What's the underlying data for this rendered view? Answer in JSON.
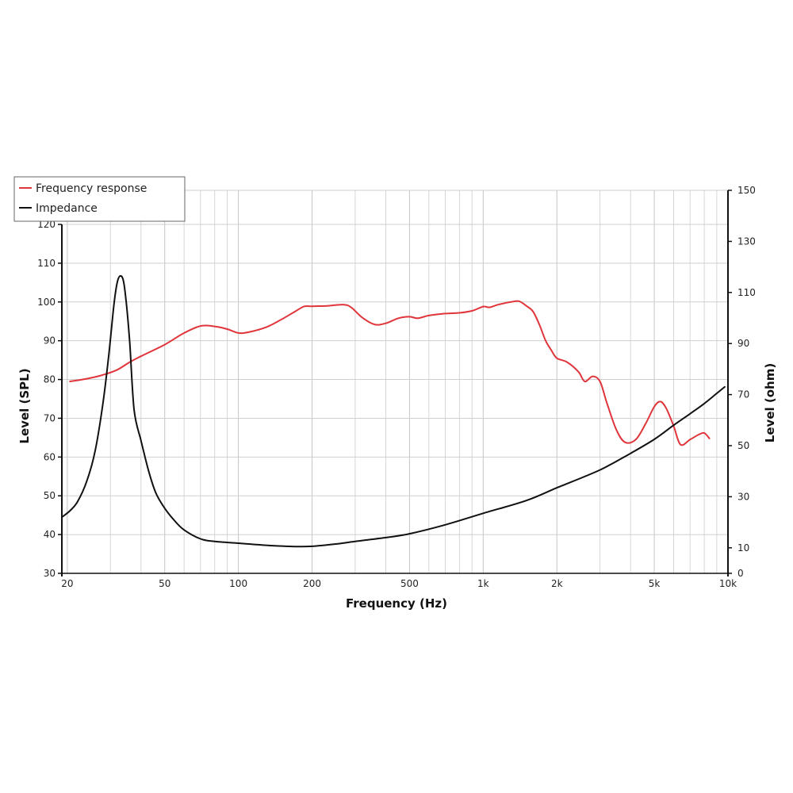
{
  "chart_data": {
    "type": "line",
    "xlabel": "Frequency (Hz)",
    "ylabel": "Level (SPL)",
    "ylabel_right": "Level (ohm)",
    "x_scale": "log",
    "xlim": [
      19,
      10000
    ],
    "ylim": [
      30,
      120
    ],
    "ylim_right": [
      0,
      150
    ],
    "grid": true,
    "legend_position": "top-left",
    "x_ticks": [
      {
        "value": 20,
        "label": "20"
      },
      {
        "value": 50,
        "label": "50"
      },
      {
        "value": 100,
        "label": "100"
      },
      {
        "value": 200,
        "label": "200"
      },
      {
        "value": 500,
        "label": "500"
      },
      {
        "value": 1000,
        "label": "1k"
      },
      {
        "value": 2000,
        "label": "2k"
      },
      {
        "value": 5000,
        "label": "5k"
      },
      {
        "value": 10000,
        "label": "10k"
      }
    ],
    "y_ticks_left": [
      30,
      40,
      50,
      60,
      70,
      80,
      90,
      100,
      110,
      120
    ],
    "y_ticks_right": [
      0,
      10,
      30,
      50,
      70,
      90,
      110,
      130,
      150
    ],
    "series": [
      {
        "name": "Frequency response",
        "axis": "left",
        "color": "#e0353b",
        "points": [
          [
            20.5,
            79.5
          ],
          [
            24,
            80.2
          ],
          [
            28,
            81.2
          ],
          [
            32,
            82.5
          ],
          [
            36,
            84.5
          ],
          [
            40,
            86
          ],
          [
            50,
            89
          ],
          [
            60,
            92
          ],
          [
            70,
            93.8
          ],
          [
            80,
            93.7
          ],
          [
            90,
            93
          ],
          [
            100,
            92
          ],
          [
            110,
            92.2
          ],
          [
            130,
            93.5
          ],
          [
            150,
            95.5
          ],
          [
            170,
            97.5
          ],
          [
            185,
            98.8
          ],
          [
            200,
            98.9
          ],
          [
            230,
            99
          ],
          [
            270,
            99.3
          ],
          [
            290,
            98.5
          ],
          [
            320,
            96
          ],
          [
            360,
            94.2
          ],
          [
            400,
            94.5
          ],
          [
            450,
            95.8
          ],
          [
            500,
            96.2
          ],
          [
            540,
            95.8
          ],
          [
            600,
            96.5
          ],
          [
            700,
            97
          ],
          [
            800,
            97.2
          ],
          [
            900,
            97.7
          ],
          [
            1000,
            98.8
          ],
          [
            1060,
            98.6
          ],
          [
            1150,
            99.3
          ],
          [
            1300,
            100
          ],
          [
            1400,
            100.2
          ],
          [
            1500,
            99
          ],
          [
            1600,
            97.5
          ],
          [
            1700,
            94
          ],
          [
            1800,
            90
          ],
          [
            1900,
            87.5
          ],
          [
            2000,
            85.5
          ],
          [
            2200,
            84.5
          ],
          [
            2450,
            82
          ],
          [
            2600,
            79.5
          ],
          [
            2800,
            80.8
          ],
          [
            3000,
            79.5
          ],
          [
            3200,
            74
          ],
          [
            3500,
            67
          ],
          [
            3800,
            63.8
          ],
          [
            4200,
            64.5
          ],
          [
            4600,
            68.5
          ],
          [
            5000,
            73
          ],
          [
            5300,
            74.3
          ],
          [
            5600,
            72.5
          ],
          [
            6000,
            68
          ],
          [
            6400,
            63.2
          ],
          [
            7000,
            64.5
          ],
          [
            7600,
            65.8
          ],
          [
            8000,
            66.2
          ],
          [
            8400,
            64.8
          ]
        ]
      },
      {
        "name": "Impedance",
        "axis": "right",
        "color": "#111111",
        "points": [
          [
            19,
            22
          ],
          [
            20.5,
            24.5
          ],
          [
            22,
            28
          ],
          [
            24,
            36
          ],
          [
            26,
            48
          ],
          [
            28,
            67
          ],
          [
            29.5,
            85
          ],
          [
            31,
            105
          ],
          [
            32,
            114
          ],
          [
            33,
            116.5
          ],
          [
            34,
            114
          ],
          [
            35,
            104
          ],
          [
            36,
            90
          ],
          [
            37.5,
            64
          ],
          [
            40,
            52
          ],
          [
            43,
            40
          ],
          [
            46,
            31.5
          ],
          [
            50,
            25.5
          ],
          [
            55,
            20.5
          ],
          [
            60,
            17
          ],
          [
            70,
            13.5
          ],
          [
            80,
            12.5
          ],
          [
            100,
            11.8
          ],
          [
            130,
            11
          ],
          [
            170,
            10.5
          ],
          [
            200,
            10.6
          ],
          [
            250,
            11.5
          ],
          [
            300,
            12.5
          ],
          [
            400,
            14
          ],
          [
            500,
            15.5
          ],
          [
            700,
            19
          ],
          [
            1000,
            23.5
          ],
          [
            1500,
            28.5
          ],
          [
            2000,
            33.5
          ],
          [
            3000,
            40.5
          ],
          [
            4000,
            47
          ],
          [
            5000,
            52.5
          ],
          [
            6000,
            58
          ],
          [
            7000,
            62.5
          ],
          [
            8000,
            66.5
          ],
          [
            9000,
            70.5
          ],
          [
            9700,
            73
          ]
        ]
      }
    ]
  }
}
